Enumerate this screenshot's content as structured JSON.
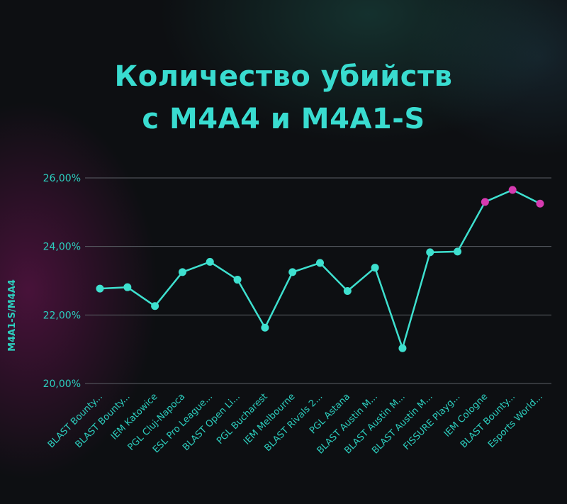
{
  "chart_data": {
    "type": "line",
    "title_lines": [
      "Количество убийств",
      "с M4A4 и M4A1-S"
    ],
    "ylabel": "M4A1-S/M4A4",
    "xlabel": "",
    "ylim": [
      20,
      26
    ],
    "yticks": [
      {
        "value": 20,
        "label": "20,00%"
      },
      {
        "value": 22,
        "label": "22,00%"
      },
      {
        "value": 24,
        "label": "24,00%"
      },
      {
        "value": 26,
        "label": "26,00%"
      }
    ],
    "grid": true,
    "categories": [
      "BLAST Bounty...",
      "BLAST Bounty...",
      "IEM Katowice",
      "PGL Cluj-Napoca",
      "ESL Pro League...",
      "BLAST Open Li...",
      "PGL Bucharest",
      "IEM Melbourne",
      "BLAST Rivals 2...",
      "PGL Astana",
      "BLAST Austin M...",
      "BLAST Austin M...",
      "BLAST Austin M...",
      "FISSURE Playg...",
      "IEM Cologne",
      "BLAST Bounty...",
      "Esports World..."
    ],
    "series": [
      {
        "values": [
          22.77,
          22.81,
          22.26,
          23.25,
          23.55,
          23.03,
          21.63,
          23.25,
          23.52,
          22.7,
          23.38,
          21.03,
          23.83,
          23.85,
          25.3,
          25.65,
          25.25
        ],
        "color": "#3ee0cf"
      }
    ],
    "highlight_color": "#d63bb0",
    "highlight_indices": [
      14,
      15,
      16
    ]
  }
}
